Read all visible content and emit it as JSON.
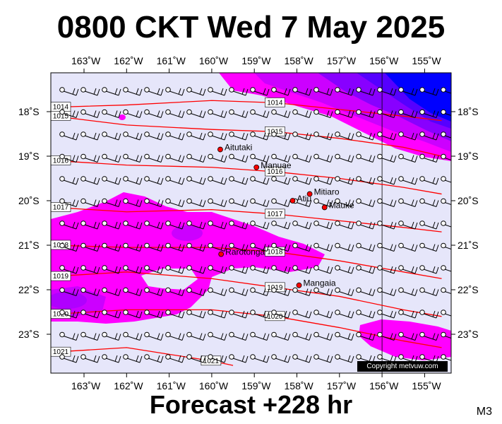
{
  "title": "0800 CKT Wed 7 May 2025",
  "footer": "Forecast +228 hr",
  "model_tag": "M3",
  "copyright": "Copyright metvuw.com",
  "longitude_labels": [
    "163˚W",
    "162˚W",
    "161˚W",
    "160˚W",
    "159˚W",
    "158˚W",
    "157˚W",
    "156˚W",
    "155˚W"
  ],
  "latitude_labels": [
    "18˚S",
    "19˚S",
    "20˚S",
    "21˚S",
    "22˚S",
    "23˚S"
  ],
  "places": [
    {
      "name": "Aitutaki",
      "lon": -159.8,
      "lat": -18.85
    },
    {
      "name": "Manuae",
      "lon": -158.95,
      "lat": -19.25
    },
    {
      "name": "Atiu",
      "lon": -158.1,
      "lat": -20.0
    },
    {
      "name": "Mitiaro",
      "lon": -157.7,
      "lat": -19.85
    },
    {
      "name": "Mauke",
      "lon": -157.35,
      "lat": -20.15
    },
    {
      "name": "Rarotonga",
      "lon": -159.78,
      "lat": -21.2
    },
    {
      "name": "Mangaia",
      "lon": -157.95,
      "lat": -21.9
    }
  ],
  "isobars": [
    {
      "label": "1014",
      "points": [
        [
          -163.7,
          -17.9
        ],
        [
          -162,
          -17.85
        ],
        [
          -160,
          -17.75
        ],
        [
          -158.5,
          -17.8
        ],
        [
          -157,
          -17.95
        ],
        [
          -155.5,
          -18.1
        ],
        [
          -154.6,
          -18.2
        ]
      ]
    },
    {
      "label": "1015",
      "points": [
        [
          -163.7,
          -18.1
        ],
        [
          -162,
          -18.3
        ],
        [
          -160,
          -18.4
        ],
        [
          -158.5,
          -18.45
        ],
        [
          -157,
          -18.6
        ],
        [
          -155.5,
          -18.8
        ],
        [
          -154.6,
          -19.0
        ]
      ]
    },
    {
      "label": "1016",
      "points": [
        [
          -163.7,
          -19.1
        ],
        [
          -162,
          -19.2
        ],
        [
          -160,
          -19.25
        ],
        [
          -158.5,
          -19.35
        ],
        [
          -157,
          -19.5
        ],
        [
          -155.5,
          -19.7
        ],
        [
          -154.6,
          -19.85
        ]
      ]
    },
    {
      "label": "1017",
      "points": [
        [
          -163.7,
          -20.15
        ],
        [
          -162,
          -20.25
        ],
        [
          -160,
          -20.2
        ],
        [
          -158.5,
          -20.3
        ],
        [
          -157,
          -20.45
        ],
        [
          -155.5,
          -20.6
        ],
        [
          -154.6,
          -20.7
        ]
      ]
    },
    {
      "label": "1018",
      "points": [
        [
          -163.7,
          -21.0
        ],
        [
          -162,
          -21.05
        ],
        [
          -160,
          -21.05
        ],
        [
          -158.5,
          -21.15
        ],
        [
          -157,
          -21.35
        ],
        [
          -155.5,
          -21.6
        ],
        [
          -154.6,
          -21.75
        ]
      ]
    },
    {
      "label": "1019",
      "points": [
        [
          -163.7,
          -21.7
        ],
        [
          -162,
          -21.6
        ],
        [
          -160,
          -21.75
        ],
        [
          -158.5,
          -21.95
        ],
        [
          -157,
          -22.15
        ],
        [
          -155.5,
          -22.45
        ],
        [
          -154.6,
          -22.6
        ]
      ]
    },
    {
      "label": "1020",
      "points": [
        [
          -163.7,
          -22.55
        ],
        [
          -162,
          -22.45
        ],
        [
          -160,
          -22.45
        ],
        [
          -158.5,
          -22.6
        ],
        [
          -157,
          -22.85
        ],
        [
          -155.5,
          -23.15
        ],
        [
          -154.6,
          -23.3
        ]
      ]
    },
    {
      "label": "1021",
      "points": [
        [
          -163.7,
          -23.4
        ],
        [
          -162,
          -23.3
        ],
        [
          -161,
          -23.45
        ],
        [
          -160,
          -23.6
        ],
        [
          -159.5,
          -23.7
        ]
      ]
    }
  ],
  "colors": {
    "background": "#e6e6fa",
    "rain_light": "#ff00ff",
    "rain_medium": "#cc00ff",
    "rain_heavy": "#8800ff",
    "rain_extreme": "#0000ff",
    "isobar": "#ff0000",
    "place_marker": "#ff0000"
  }
}
